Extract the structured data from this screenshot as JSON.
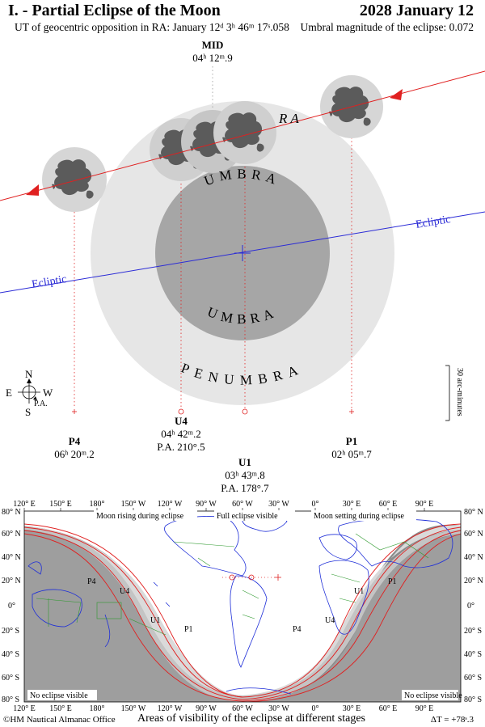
{
  "header": {
    "title": "I. - Partial Eclipse of the Moon",
    "date": "2028 January 12",
    "opposition": "UT of geocentric opposition in RA: January 12ᵈ 3ʰ 46ᵐ 17ˢ.058",
    "magnitude": "Umbral magnitude of the eclipse: 0.072"
  },
  "diagram": {
    "ecliptic_label": "Ecliptic",
    "umbra_label": "UMBRA",
    "penumbra_label": "PENUMBRA",
    "compass": {
      "n": "N",
      "s": "S",
      "e": "E",
      "w": "W",
      "pa": "P.A."
    },
    "scale_label": "30 arc-minutes",
    "contacts": {
      "mid": {
        "name": "MID",
        "time": "04ʰ 12ᵐ.9"
      },
      "p4": {
        "name": "P4",
        "time": "06ʰ 20ᵐ.2"
      },
      "u4": {
        "name": "U4",
        "time": "04ʰ 42ᵐ.2",
        "pa": "P.A. 210°.5"
      },
      "u1": {
        "name": "U1",
        "time": "03ʰ 43ᵐ.8",
        "pa": "P.A. 178°.7"
      },
      "p1": {
        "name": "P1",
        "time": "02ʰ 05ᵐ.7"
      }
    }
  },
  "map": {
    "lon_labels": [
      "120° E",
      "150° E",
      "180°",
      "150° W",
      "120° W",
      "90° W",
      "60° W",
      "30° W",
      "0°",
      "30° E",
      "60° E",
      "90° E"
    ],
    "lat_labels": [
      "80° N",
      "60° N",
      "40° N",
      "20° N",
      "0°",
      "20° S",
      "40° S",
      "60° S",
      "80° S"
    ],
    "notes": {
      "rising": "Moon rising during eclipse",
      "full": "Full eclipse visible",
      "setting": "Moon setting during eclipse",
      "none_left": "No eclipse visible",
      "none_right": "No eclipse visible"
    },
    "curve_labels": {
      "p4_w": "P4",
      "u4_w": "U4",
      "u1_w": "U1",
      "p1_w": "P1",
      "p4_e": "P4",
      "u4_e": "U4",
      "u1_e": "U1",
      "p1_e": "P1"
    }
  },
  "footer": {
    "credit": "©HM Nautical Almanac Office",
    "caption": "Areas of visibility of the eclipse at different stages",
    "delta_t": "ΔT = +78ˢ.3"
  },
  "colors": {
    "penumbra": "#e6e6e6",
    "umbra": "#a6a6a6",
    "moon": "#d6d6d6",
    "moon_maria": "#5b5b5b",
    "ecliptic": "#2b2bd6",
    "moon_path": "#e02020",
    "map_night": "#8c8c8c",
    "coast": "#1f2fd8",
    "borders": "#2f9a2f"
  }
}
